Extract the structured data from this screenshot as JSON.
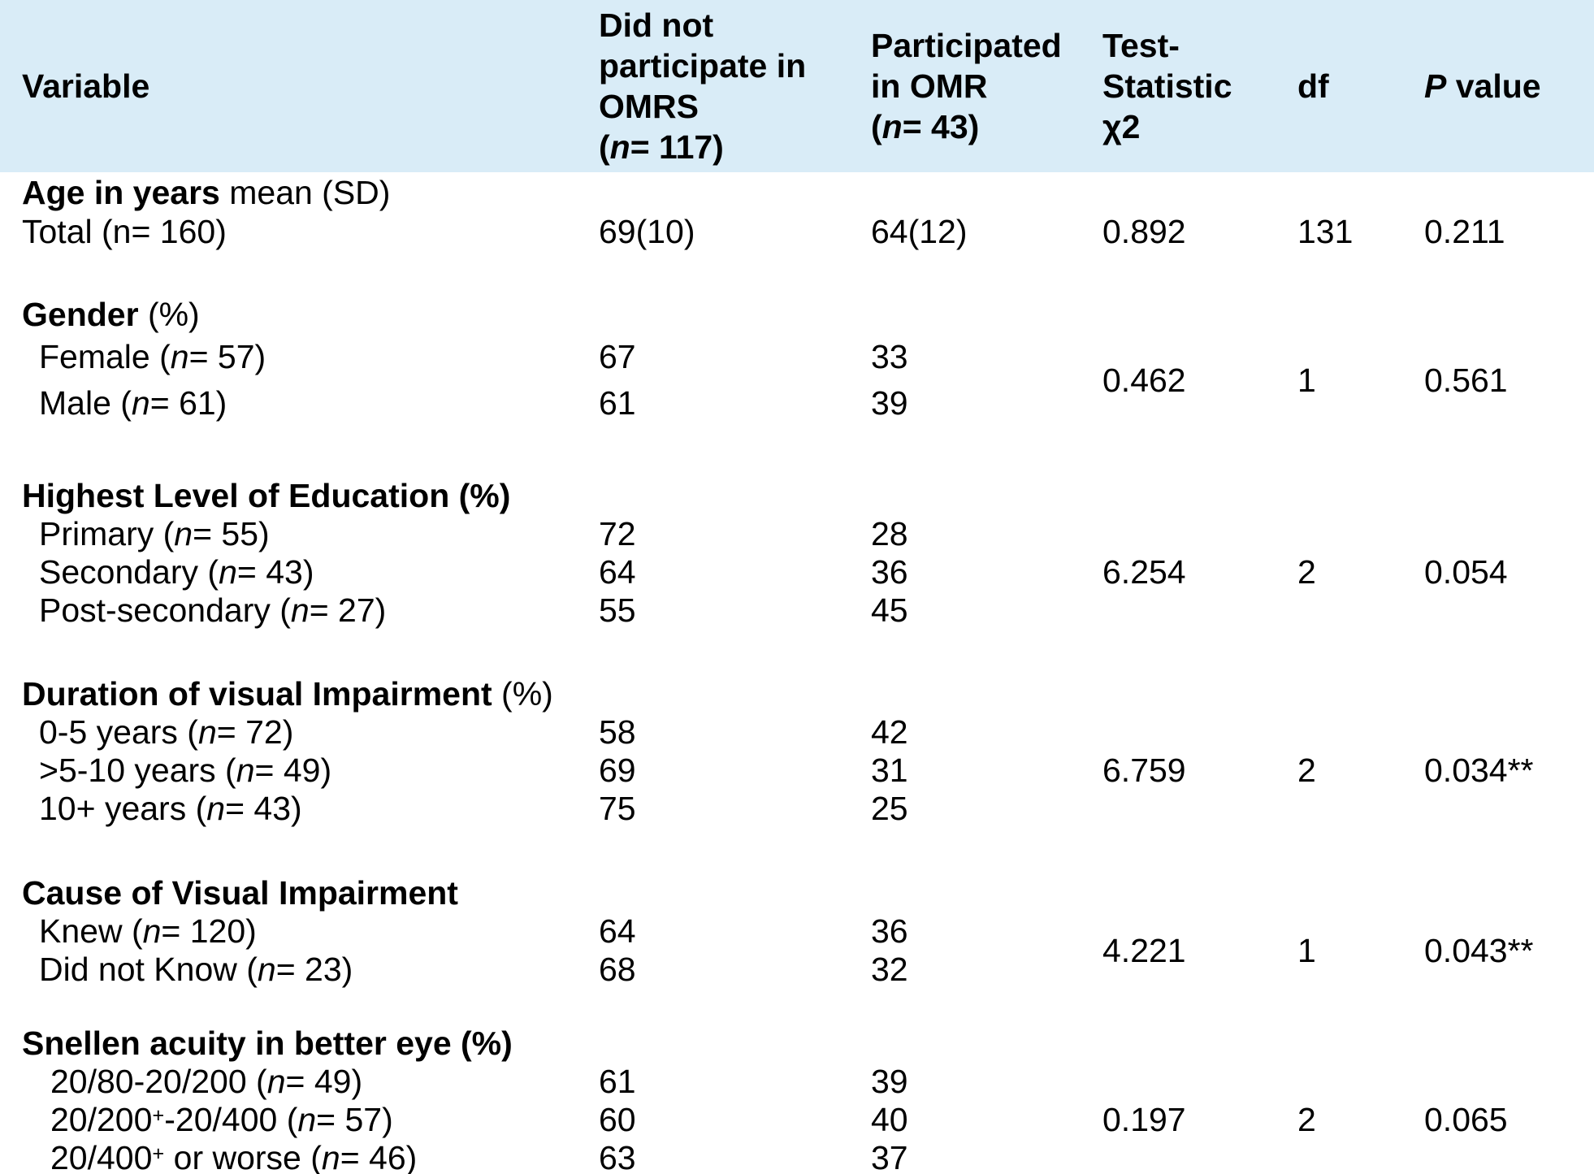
{
  "table": {
    "colors": {
      "header_bg": "#d9ecf7",
      "footer_strip_bg": "#e6f2fa",
      "text": "#000000"
    },
    "header": {
      "variable": [
        {
          "t": "Variable"
        }
      ],
      "no_participate": [
        {
          "t": "Did not"
        },
        {
          "br": true
        },
        {
          "t": "participate in"
        },
        {
          "br": true
        },
        {
          "t": "OMRS"
        },
        {
          "br": true
        },
        {
          "t": "("
        },
        {
          "t": "n",
          "i": true
        },
        {
          "t": "= 117)"
        }
      ],
      "participated": [
        {
          "t": "Participated"
        },
        {
          "br": true
        },
        {
          "t": "in OMR"
        },
        {
          "br": true
        },
        {
          "t": "("
        },
        {
          "t": "n",
          "i": true
        },
        {
          "t": "= 43)"
        }
      ],
      "test_statistic": [
        {
          "t": "Test-"
        },
        {
          "br": true
        },
        {
          "t": "Statistic"
        },
        {
          "br": true
        },
        {
          "t": "χ2"
        }
      ],
      "df": "df",
      "p_value": [
        {
          "t": "P",
          "i": true
        },
        {
          "t": " value"
        }
      ]
    },
    "sections": [
      {
        "name": "age",
        "header": [
          {
            "t": "Age in years",
            "b": true
          },
          {
            "t": " mean (SD)"
          }
        ],
        "rows": [
          {
            "label": [
              {
                "t": "Total (n= 160)"
              }
            ],
            "not_participate": "69(10)",
            "participated": "64(12)"
          }
        ],
        "stats": {
          "chi": "0.892",
          "df": "131",
          "p": "0.211"
        }
      },
      {
        "name": "gender",
        "header": [
          {
            "t": "Gender",
            "b": true
          },
          {
            "t": " (%)"
          }
        ],
        "rows": [
          {
            "label": [
              {
                "t": "Female ("
              },
              {
                "t": "n",
                "i": true
              },
              {
                "t": "= 57)"
              }
            ],
            "not_participate": "67",
            "participated": "33"
          },
          {
            "label": [
              {
                "t": "Male ("
              },
              {
                "t": "n",
                "i": true
              },
              {
                "t": "= 61)"
              }
            ],
            "not_participate": "61",
            "participated": "39"
          }
        ],
        "stats": {
          "chi": "0.462",
          "df": "1",
          "p": "0.561"
        }
      },
      {
        "name": "education",
        "header": [
          {
            "t": "Highest Level of Education (%)",
            "b": true
          }
        ],
        "rows": [
          {
            "label": [
              {
                "t": "Primary ("
              },
              {
                "t": "n",
                "i": true
              },
              {
                "t": "= 55)"
              }
            ],
            "not_participate": "72",
            "participated": "28"
          },
          {
            "label": [
              {
                "t": "Secondary ("
              },
              {
                "t": "n",
                "i": true
              },
              {
                "t": "= 43)"
              }
            ],
            "not_participate": "64",
            "participated": "36"
          },
          {
            "label": [
              {
                "t": "Post-secondary ("
              },
              {
                "t": "n",
                "i": true
              },
              {
                "t": "= 27)"
              }
            ],
            "not_participate": "55",
            "participated": "45"
          }
        ],
        "stats": {
          "chi": "6.254",
          "df": "2",
          "p": "0.054"
        }
      },
      {
        "name": "duration",
        "header": [
          {
            "t": "Duration of visual Impairment",
            "b": true
          },
          {
            "t": " (%)"
          }
        ],
        "rows": [
          {
            "label": [
              {
                "t": "0-5 years ("
              },
              {
                "t": "n",
                "i": true
              },
              {
                "t": "= 72)"
              }
            ],
            "not_participate": "58",
            "participated": "42"
          },
          {
            "label": [
              {
                "t": ">5-10 years ("
              },
              {
                "t": "n",
                "i": true
              },
              {
                "t": "= 49)"
              }
            ],
            "not_participate": "69",
            "participated": "31"
          },
          {
            "label": [
              {
                "t": "10+ years ("
              },
              {
                "t": "n",
                "i": true
              },
              {
                "t": "= 43)"
              }
            ],
            "not_participate": "75",
            "participated": "25"
          }
        ],
        "stats": {
          "chi": "6.759",
          "df": "2",
          "p": "0.034**"
        }
      },
      {
        "name": "cause",
        "header": [
          {
            "t": "Cause of Visual Impairment",
            "b": true
          }
        ],
        "rows": [
          {
            "label": [
              {
                "t": "Knew ("
              },
              {
                "t": "n",
                "i": true
              },
              {
                "t": "= 120)"
              }
            ],
            "not_participate": "64",
            "participated": "36"
          },
          {
            "label": [
              {
                "t": "Did not Know ("
              },
              {
                "t": "n",
                "i": true
              },
              {
                "t": "= 23)"
              }
            ],
            "not_participate": "68",
            "participated": "32"
          }
        ],
        "stats": {
          "chi": "4.221",
          "df": "1",
          "p": "0.043**"
        }
      },
      {
        "name": "snellen",
        "header": [
          {
            "t": "Snellen acuity in better eye (%)",
            "b": true
          }
        ],
        "rows": [
          {
            "label": [
              {
                "t": "20/80-20/200 ("
              },
              {
                "t": "n",
                "i": true
              },
              {
                "t": "= 49)"
              }
            ],
            "not_participate": "61",
            "participated": "39"
          },
          {
            "label": [
              {
                "t": "20/200"
              },
              {
                "t": "+",
                "sup": true
              },
              {
                "t": "-20/400 ("
              },
              {
                "t": "n",
                "i": true
              },
              {
                "t": "= 57)"
              }
            ],
            "not_participate": "60",
            "participated": "40"
          },
          {
            "label": [
              {
                "t": "20/400"
              },
              {
                "t": "+",
                "sup": true
              },
              {
                "t": " or worse ("
              },
              {
                "t": "n",
                "i": true
              },
              {
                "t": "= 46)"
              }
            ],
            "not_participate": "63",
            "participated": "37"
          }
        ],
        "stats": {
          "chi": "0.197",
          "df": "2",
          "p": "0.065"
        }
      }
    ]
  }
}
